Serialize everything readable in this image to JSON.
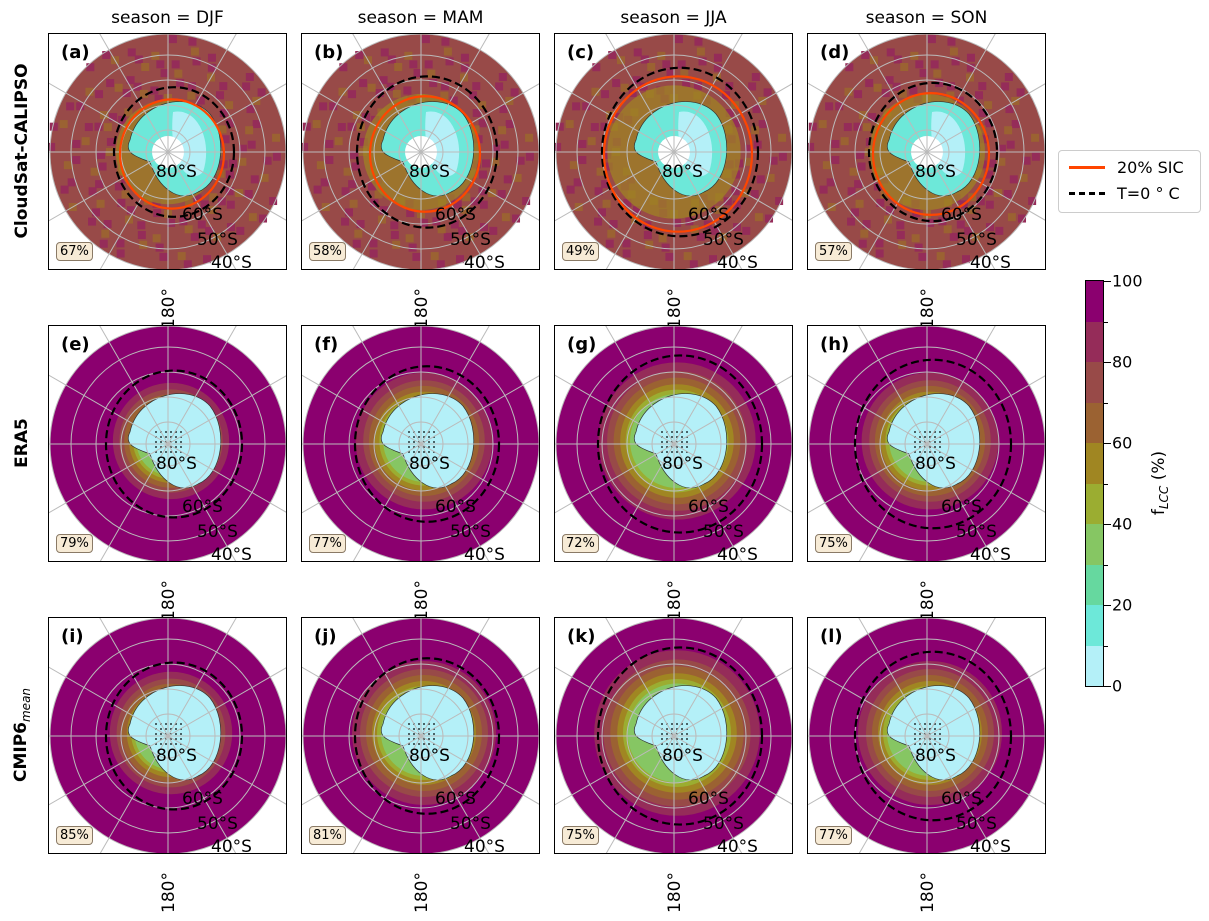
{
  "columns": [
    "season = DJF",
    "season = MAM",
    "season = JJA",
    "season = SON"
  ],
  "rows": [
    {
      "label": "CloudSat-CALIPSO",
      "sub": "",
      "panels": [
        {
          "letter": "(a)",
          "pct": "67%"
        },
        {
          "letter": "(b)",
          "pct": "58%"
        },
        {
          "letter": "(c)",
          "pct": "49%"
        },
        {
          "letter": "(d)",
          "pct": "57%"
        }
      ]
    },
    {
      "label": "ERA5",
      "sub": "",
      "panels": [
        {
          "letter": "(e)",
          "pct": "79%"
        },
        {
          "letter": "(f)",
          "pct": "77%"
        },
        {
          "letter": "(g)",
          "pct": "72%"
        },
        {
          "letter": "(h)",
          "pct": "75%"
        }
      ]
    },
    {
      "label": "CMIP6",
      "sub": "mean",
      "panels": [
        {
          "letter": "(i)",
          "pct": "85%"
        },
        {
          "letter": "(j)",
          "pct": "81%"
        },
        {
          "letter": "(k)",
          "pct": "75%"
        },
        {
          "letter": "(l)",
          "pct": "77%"
        }
      ]
    }
  ],
  "lat_labels": [
    "80°S",
    "60°S",
    "50°S",
    "40°S"
  ],
  "lon_label": "180°",
  "legend": [
    {
      "label": "20% SIC",
      "color": "#ff4500",
      "style": "solid"
    },
    {
      "label": "T=0$^\\circ$C",
      "display": "T=0 ° C",
      "color": "#000000",
      "style": "dashed"
    }
  ],
  "colorbar": {
    "title": "f",
    "title_sub": "LCC",
    "title_unit": " (%)",
    "ticks": [
      "0",
      "20",
      "40",
      "60",
      "80",
      "100"
    ],
    "range": [
      0,
      100
    ],
    "colors": [
      "#b4f0f8",
      "#6de8d9",
      "#66d89f",
      "#86c663",
      "#9bad31",
      "#a08622",
      "#9b6232",
      "#984a48",
      "#952c59",
      "#8b006f"
    ]
  }
}
